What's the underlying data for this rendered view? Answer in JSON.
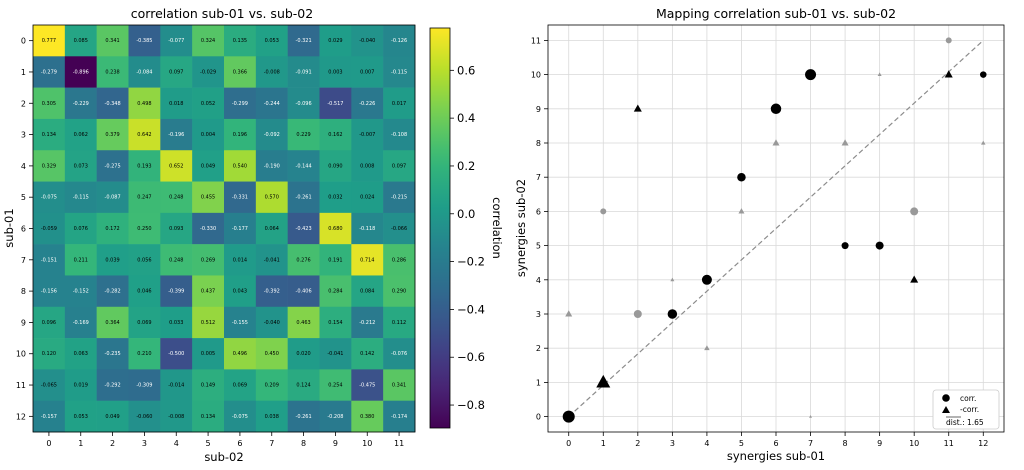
{
  "chart_data": [
    {
      "type": "heatmap",
      "title": "correlation sub-01 vs. sub-02",
      "xlabel": "sub-02",
      "ylabel": "sub-01",
      "x_categories": [
        "0",
        "1",
        "2",
        "3",
        "4",
        "5",
        "6",
        "7",
        "8",
        "9",
        "10",
        "11"
      ],
      "y_categories": [
        "0",
        "1",
        "2",
        "3",
        "4",
        "5",
        "6",
        "7",
        "8",
        "9",
        "10",
        "11",
        "12"
      ],
      "values": [
        [
          0.777,
          0.085,
          0.341,
          -0.385,
          -0.077,
          0.324,
          0.135,
          0.053,
          -0.321,
          0.029,
          -0.04,
          -0.126
        ],
        [
          -0.279,
          -0.896,
          0.238,
          -0.084,
          0.097,
          -0.029,
          0.366,
          -0.008,
          -0.091,
          0.003,
          0.007,
          -0.115
        ],
        [
          0.305,
          -0.229,
          -0.348,
          0.498,
          0.018,
          0.052,
          -0.299,
          -0.244,
          -0.096,
          -0.517,
          -0.226,
          0.017
        ],
        [
          0.134,
          0.062,
          0.379,
          0.642,
          -0.196,
          0.004,
          0.196,
          -0.092,
          0.229,
          0.162,
          -0.007,
          -0.108
        ],
        [
          0.329,
          0.073,
          -0.275,
          0.193,
          0.652,
          0.049,
          0.54,
          -0.19,
          -0.144,
          0.09,
          0.008,
          0.097
        ],
        [
          -0.075,
          -0.115,
          -0.087,
          0.247,
          0.248,
          0.455,
          -0.331,
          0.57,
          -0.261,
          0.032,
          0.024,
          -0.215
        ],
        [
          -0.059,
          0.076,
          0.172,
          0.25,
          0.093,
          -0.33,
          -0.177,
          0.064,
          -0.423,
          0.68,
          -0.118,
          -0.066
        ],
        [
          -0.151,
          0.211,
          0.039,
          0.056,
          0.248,
          0.269,
          0.014,
          -0.041,
          0.276,
          0.191,
          0.714,
          0.286
        ],
        [
          -0.156,
          -0.152,
          -0.282,
          0.046,
          -0.399,
          0.437,
          0.043,
          -0.392,
          -0.406,
          0.284,
          0.084,
          0.29
        ],
        [
          0.096,
          -0.169,
          0.364,
          0.069,
          0.033,
          0.512,
          -0.155,
          -0.04,
          0.463,
          0.154,
          -0.212,
          0.112
        ],
        [
          0.12,
          0.063,
          -0.235,
          0.21,
          -0.5,
          0.005,
          0.496,
          0.45,
          0.02,
          -0.041,
          0.142,
          -0.076
        ],
        [
          -0.065,
          0.019,
          -0.292,
          -0.309,
          -0.014,
          0.149,
          0.069,
          0.209,
          0.124,
          0.254,
          -0.475,
          0.341
        ],
        [
          -0.157,
          0.053,
          0.049,
          -0.06,
          -0.008,
          0.134,
          -0.075,
          0.038,
          -0.261,
          -0.208,
          0.38,
          -0.174
        ]
      ],
      "vmin": -0.896,
      "vmax": 0.777,
      "colormap": "viridis",
      "colorbar": {
        "label": "correlation",
        "ticks": [
          0.6,
          0.4,
          0.2,
          0.0,
          -0.2,
          -0.4,
          -0.6,
          -0.8
        ],
        "tick_labels": [
          "0.6",
          "0.4",
          "0.2",
          "0.0",
          "−0.2",
          "−0.4",
          "−0.6",
          "−0.8"
        ]
      }
    },
    {
      "type": "scatter",
      "title": "Mapping correlation sub-01 vs. sub-02",
      "xlabel": "synergies sub-01",
      "ylabel": "synergies sub-02",
      "xlim": [
        -0.6,
        12.6
      ],
      "ylim": [
        -0.45,
        11.45
      ],
      "xticks": [
        "0",
        "1",
        "2",
        "3",
        "4",
        "5",
        "6",
        "7",
        "8",
        "9",
        "10",
        "11",
        "12"
      ],
      "yticks": [
        "0",
        "1",
        "2",
        "3",
        "4",
        "5",
        "6",
        "7",
        "8",
        "9",
        "10",
        "11"
      ],
      "grid": true,
      "diagonal_line": {
        "from": [
          0,
          0
        ],
        "to": [
          12,
          11
        ],
        "style": "dashed",
        "color": "#8c8c8c"
      },
      "points": [
        {
          "x": 0,
          "y": 0,
          "marker": "circle",
          "color": "#000000",
          "size": 12
        },
        {
          "x": 1,
          "y": 1,
          "marker": "triangle",
          "color": "#000000",
          "size": 14
        },
        {
          "x": 3,
          "y": 3,
          "marker": "circle",
          "color": "#000000",
          "size": 9.5
        },
        {
          "x": 4,
          "y": 4,
          "marker": "circle",
          "color": "#000000",
          "size": 10
        },
        {
          "x": 5,
          "y": 7,
          "marker": "circle",
          "color": "#000000",
          "size": 8.5
        },
        {
          "x": 6,
          "y": 9,
          "marker": "circle",
          "color": "#000000",
          "size": 10.5
        },
        {
          "x": 7,
          "y": 10,
          "marker": "circle",
          "color": "#000000",
          "size": 11
        },
        {
          "x": 8,
          "y": 5,
          "marker": "circle",
          "color": "#000000",
          "size": 7
        },
        {
          "x": 9,
          "y": 5,
          "marker": "circle",
          "color": "#000000",
          "size": 8
        },
        {
          "x": 12,
          "y": 10,
          "marker": "circle",
          "color": "#000000",
          "size": 6.5
        },
        {
          "x": 2,
          "y": 9,
          "marker": "triangle",
          "color": "#000000",
          "size": 8
        },
        {
          "x": 10,
          "y": 4,
          "marker": "triangle",
          "color": "#000000",
          "size": 8
        },
        {
          "x": 11,
          "y": 10,
          "marker": "triangle",
          "color": "#000000",
          "size": 8
        },
        {
          "x": 1,
          "y": 6,
          "marker": "circle",
          "color": "#999999",
          "size": 6
        },
        {
          "x": 2,
          "y": 3,
          "marker": "circle",
          "color": "#999999",
          "size": 8
        },
        {
          "x": 10,
          "y": 6,
          "marker": "circle",
          "color": "#999999",
          "size": 8
        },
        {
          "x": 11,
          "y": 11,
          "marker": "circle",
          "color": "#999999",
          "size": 6
        },
        {
          "x": 0,
          "y": 3,
          "marker": "triangle",
          "color": "#999999",
          "size": 7
        },
        {
          "x": 3,
          "y": 4,
          "marker": "triangle",
          "color": "#999999",
          "size": 4
        },
        {
          "x": 4,
          "y": 2,
          "marker": "triangle",
          "color": "#999999",
          "size": 5.5
        },
        {
          "x": 5,
          "y": 6,
          "marker": "triangle",
          "color": "#999999",
          "size": 6
        },
        {
          "x": 6,
          "y": 8,
          "marker": "triangle",
          "color": "#999999",
          "size": 7
        },
        {
          "x": 7,
          "y": 0,
          "marker": "triangle",
          "color": "#999999",
          "size": 3
        },
        {
          "x": 8,
          "y": 8,
          "marker": "triangle",
          "color": "#999999",
          "size": 7
        },
        {
          "x": 9,
          "y": 10,
          "marker": "triangle",
          "color": "#999999",
          "size": 4
        },
        {
          "x": 12,
          "y": 8,
          "marker": "triangle",
          "color": "#999999",
          "size": 4.5
        }
      ],
      "legend": {
        "position": "bottom-right",
        "entries": [
          {
            "marker": "circle",
            "label": "corr."
          },
          {
            "marker": "triangle",
            "label": "-corr."
          }
        ],
        "note": "dist.: 1.65"
      }
    }
  ]
}
